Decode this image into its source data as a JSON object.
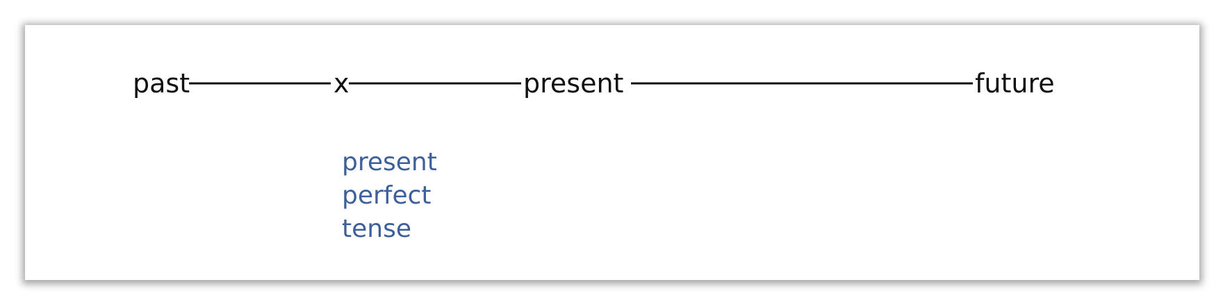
{
  "timeline": {
    "labels": {
      "past": "past",
      "marker": "x",
      "present": "present",
      "future": "future"
    },
    "line_color": "#111111",
    "label_color": "#111111"
  },
  "annotation": {
    "lines": [
      "present",
      "perfect",
      "tense"
    ],
    "color": "#3d5f9c"
  }
}
